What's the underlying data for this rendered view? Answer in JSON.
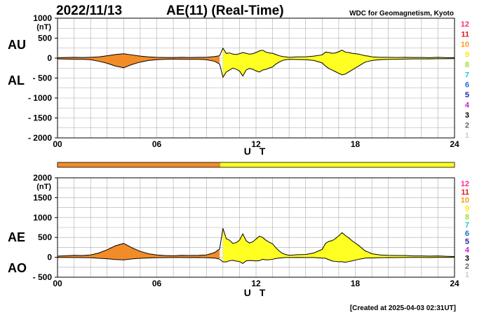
{
  "header": {
    "date": "2022/11/13",
    "title": "AE(11) (Real-Time)",
    "source": "WDC for Geomagnetism, Kyoto"
  },
  "footer": {
    "created": "[Created at 2025-04-03 02:31UT]"
  },
  "colors": {
    "orange": "#f28c28",
    "yellow": "#ffff22",
    "grid": "#aaaaaa",
    "line": "#000000"
  },
  "station_scale": {
    "levels": [
      {
        "label": "12",
        "color": "#ff2b8a"
      },
      {
        "label": "11",
        "color": "#e8141e"
      },
      {
        "label": "10",
        "color": "#ff9a10"
      },
      {
        "label": "9",
        "color": "#ffea00"
      },
      {
        "label": "8",
        "color": "#9be02a"
      },
      {
        "label": "7",
        "color": "#22c7d8"
      },
      {
        "label": "6",
        "color": "#1e6be0"
      },
      {
        "label": "5",
        "color": "#2222aa"
      },
      {
        "label": "4",
        "color": "#c81ec8"
      },
      {
        "label": "3",
        "color": "#000000"
      },
      {
        "label": "2",
        "color": "#666666"
      },
      {
        "label": "1",
        "color": "#cccccc"
      }
    ]
  },
  "status_bar": [
    {
      "from": 0,
      "to": 9.85,
      "level": "10",
      "color": "#f28c28"
    },
    {
      "from": 9.85,
      "to": 24,
      "level": "9",
      "color": "#ffff22"
    }
  ],
  "chart_data": [
    {
      "type": "area",
      "name": "AU/AL",
      "series": [
        {
          "name": "AU"
        },
        {
          "name": "AL"
        }
      ],
      "ylabel_upper": "AU",
      "ylabel_lower": "AL",
      "unit": "(nT)",
      "xlabel": "U T",
      "xlim": [
        0,
        24
      ],
      "ylim": [
        -2000,
        1000
      ],
      "xticks": [
        0,
        6,
        12,
        18,
        24
      ],
      "xtick_labels": [
        "00",
        "06",
        "12",
        "18",
        "24"
      ],
      "yticks": [
        1000,
        500,
        0,
        -500,
        -1000,
        -1500,
        -2000
      ],
      "ytick_labels": [
        "1000",
        "500",
        "0",
        "- 500",
        "- 1000",
        "- 1500",
        "- 2000"
      ],
      "grid": true,
      "hours": [
        0,
        0.5,
        1,
        1.5,
        2,
        2.5,
        3,
        3.5,
        4,
        4.5,
        5,
        5.5,
        6,
        6.5,
        7,
        7.5,
        8,
        8.5,
        9,
        9.5,
        9.8,
        10,
        10.2,
        10.4,
        10.6,
        10.8,
        11,
        11.2,
        11.4,
        11.6,
        11.8,
        12,
        12.2,
        12.4,
        12.6,
        12.8,
        13,
        13.2,
        13.4,
        13.6,
        13.8,
        14,
        14.5,
        15,
        15.5,
        16,
        16.2,
        16.4,
        16.6,
        16.8,
        17,
        17.2,
        17.4,
        17.6,
        17.8,
        18,
        18.2,
        18.4,
        18.6,
        18.8,
        19,
        19.5,
        20,
        20.5,
        21,
        21.5,
        22,
        22.5,
        23,
        23.5,
        24
      ],
      "au": [
        10,
        15,
        20,
        15,
        20,
        30,
        60,
        90,
        110,
        80,
        50,
        30,
        20,
        15,
        15,
        20,
        15,
        20,
        20,
        40,
        60,
        250,
        120,
        130,
        100,
        90,
        110,
        140,
        120,
        100,
        110,
        140,
        180,
        200,
        150,
        130,
        120,
        90,
        60,
        40,
        30,
        20,
        30,
        30,
        50,
        80,
        150,
        140,
        120,
        130,
        160,
        200,
        150,
        140,
        120,
        110,
        100,
        80,
        60,
        50,
        30,
        20,
        20,
        15,
        20,
        15,
        15,
        10,
        20,
        10,
        10
      ],
      "al": [
        -20,
        -25,
        -30,
        -30,
        -40,
        -80,
        -130,
        -200,
        -240,
        -160,
        -100,
        -60,
        -40,
        -30,
        -25,
        -30,
        -30,
        -30,
        -40,
        -80,
        -150,
        -480,
        -350,
        -300,
        -250,
        -280,
        -320,
        -450,
        -300,
        -260,
        -280,
        -320,
        -350,
        -300,
        -280,
        -250,
        -220,
        -150,
        -100,
        -60,
        -40,
        -30,
        -35,
        -40,
        -60,
        -120,
        -200,
        -260,
        -300,
        -340,
        -380,
        -420,
        -400,
        -350,
        -300,
        -250,
        -200,
        -150,
        -100,
        -80,
        -60,
        -40,
        -30,
        -30,
        -25,
        -20,
        -20,
        -20,
        -15,
        -15,
        -10
      ]
    },
    {
      "type": "area",
      "name": "AE/AO",
      "series": [
        {
          "name": "AE"
        },
        {
          "name": "AO"
        }
      ],
      "ylabel_upper": "AE",
      "ylabel_lower": "AO",
      "unit": "(nT)",
      "xlabel": "U T",
      "xlim": [
        0,
        24
      ],
      "ylim": [
        -500,
        2000
      ],
      "xticks": [
        0,
        6,
        12,
        18,
        24
      ],
      "xtick_labels": [
        "00",
        "06",
        "12",
        "18",
        "24"
      ],
      "yticks": [
        2000,
        1500,
        1000,
        500,
        0,
        -500
      ],
      "ytick_labels": [
        "2000",
        "1500",
        "1000",
        "500",
        "0",
        "- 500"
      ],
      "grid": true
    }
  ]
}
